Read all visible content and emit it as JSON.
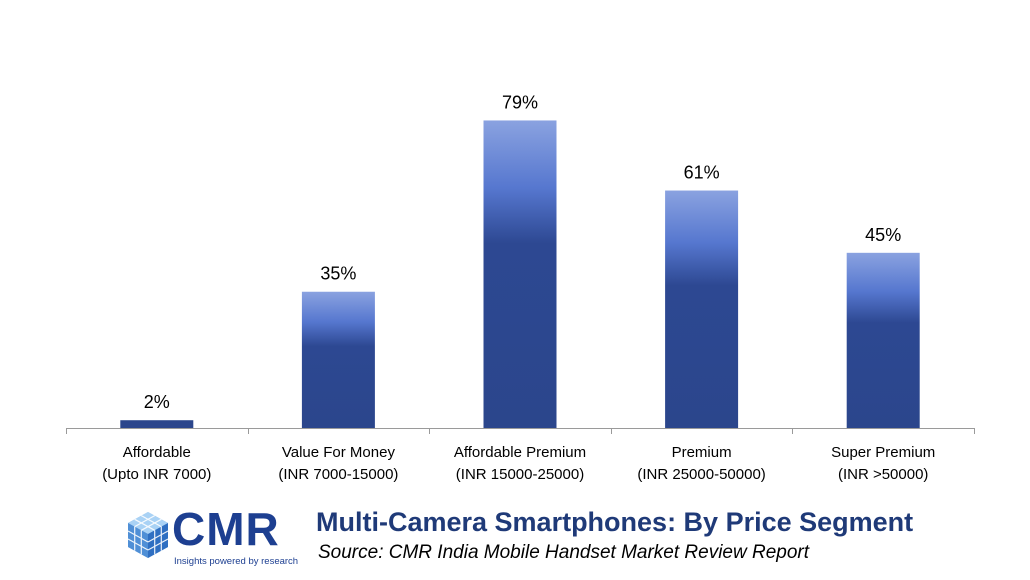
{
  "chart_data": {
    "type": "bar",
    "categories": [
      [
        "Affordable",
        "(Upto INR 7000)"
      ],
      [
        "Value For Money",
        "(INR 7000-15000)"
      ],
      [
        "Affordable Premium",
        "(INR 15000-25000)"
      ],
      [
        "Premium",
        "(INR 25000-50000)"
      ],
      [
        "Super Premium",
        "(INR >50000)"
      ]
    ],
    "values": [
      2,
      35,
      79,
      61,
      45
    ],
    "data_labels": [
      "2%",
      "35%",
      "79%",
      "61%",
      "45%"
    ],
    "unit": "%",
    "ylim": [
      0,
      100
    ],
    "grid": false,
    "legend": "none",
    "bar_color_top": "#8aa2e0",
    "bar_color_mid": "#4a6cc7",
    "bar_color_bottom": "#2b468c"
  },
  "footer": {
    "title": "Multi-Camera Smartphones: By Price Segment",
    "source": "Source:  CMR India Mobile Handset Market Review Report"
  },
  "logo": {
    "text": "CMR",
    "tagline": "Insights powered by research",
    "icon": "cube-logo-icon",
    "color": "#1d3f91"
  }
}
